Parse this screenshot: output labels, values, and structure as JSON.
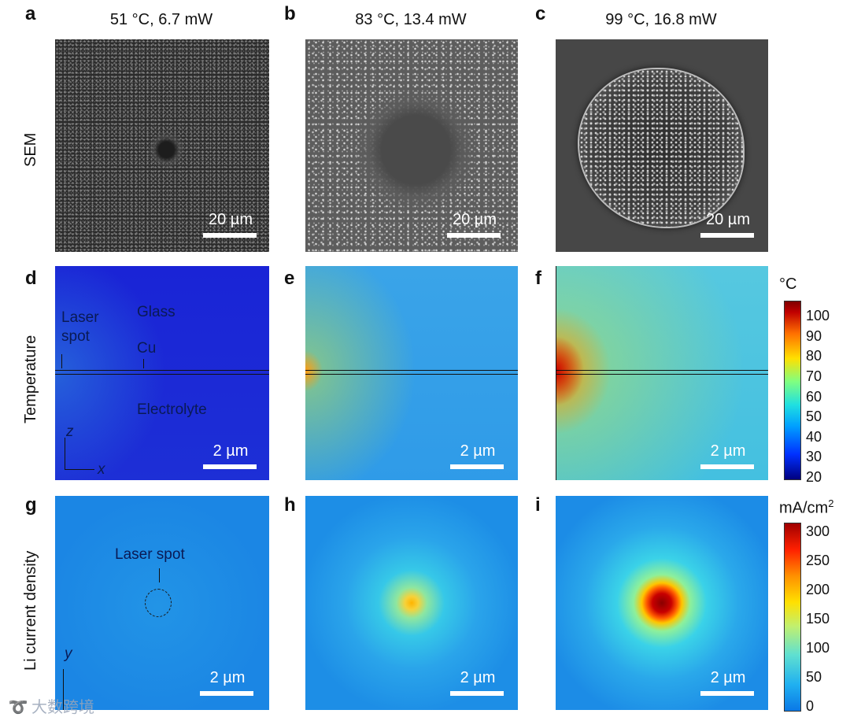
{
  "panel_letters": {
    "a": "a",
    "b": "b",
    "c": "c",
    "d": "d",
    "e": "e",
    "f": "f",
    "g": "g",
    "h": "h",
    "i": "i"
  },
  "column_titles": [
    "51 °C, 6.7 mW",
    "83 °C, 13.4 mW",
    "99 °C, 16.8 mW"
  ],
  "row_labels": {
    "sem": "SEM",
    "temperature": "Temperature",
    "current": "Li current density"
  },
  "sem_scalebar": "20 µm",
  "sim_scalebar": "2 µm",
  "annotations": {
    "laser_spot_d": "Laser spot",
    "glass": "Glass",
    "cu": "Cu",
    "electrolyte": "Electrolyte",
    "axis_z": "z",
    "axis_x": "x",
    "axis_y": "y",
    "laser_spot_g": "Laser spot"
  },
  "temperature_colorbar": {
    "unit": "°C",
    "ticks": [
      "100",
      "90",
      "80",
      "70",
      "60",
      "50",
      "40",
      "30",
      "20"
    ]
  },
  "current_colorbar": {
    "unit": "mA/cm",
    "unit_sup": "2",
    "ticks": [
      "300",
      "250",
      "200",
      "150",
      "100",
      "50",
      "0"
    ]
  },
  "watermark": "大数跨境",
  "colors": {
    "cmap_low": "#0d1a8f",
    "cmap_mid": "#29b3e6",
    "cmap_high": "#8b0000"
  }
}
